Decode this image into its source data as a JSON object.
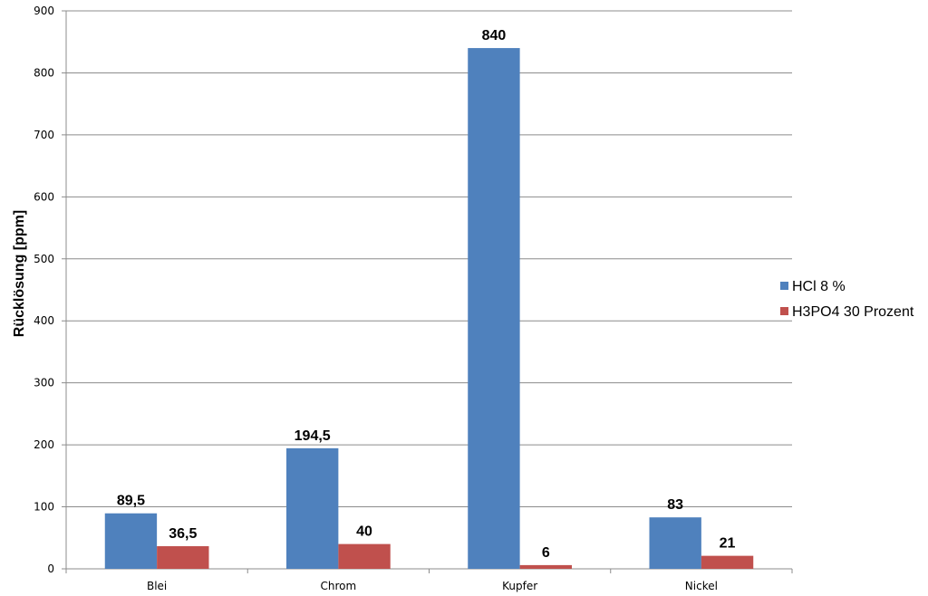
{
  "chart_data": {
    "type": "bar",
    "title": "",
    "xlabel": "",
    "ylabel": "Rücklösung [ppm]",
    "categories": [
      "Blei",
      "Chrom",
      "Kupfer",
      "Nickel"
    ],
    "series": [
      {
        "name": "HCl 8 %",
        "values": [
          89.5,
          194.5,
          840,
          83
        ],
        "labels": [
          "89,5",
          "194,5",
          "840",
          "83"
        ],
        "color": "#4F81BD"
      },
      {
        "name": "H3PO4 30 Prozent",
        "values": [
          36.5,
          40,
          6,
          21
        ],
        "labels": [
          "36,5",
          "40",
          "6",
          "21"
        ],
        "color": "#C0504D"
      }
    ],
    "ylim": [
      0,
      900
    ],
    "yticks": [
      0,
      100,
      200,
      300,
      400,
      500,
      600,
      700,
      800,
      900
    ],
    "grid": true,
    "legend": "right"
  }
}
